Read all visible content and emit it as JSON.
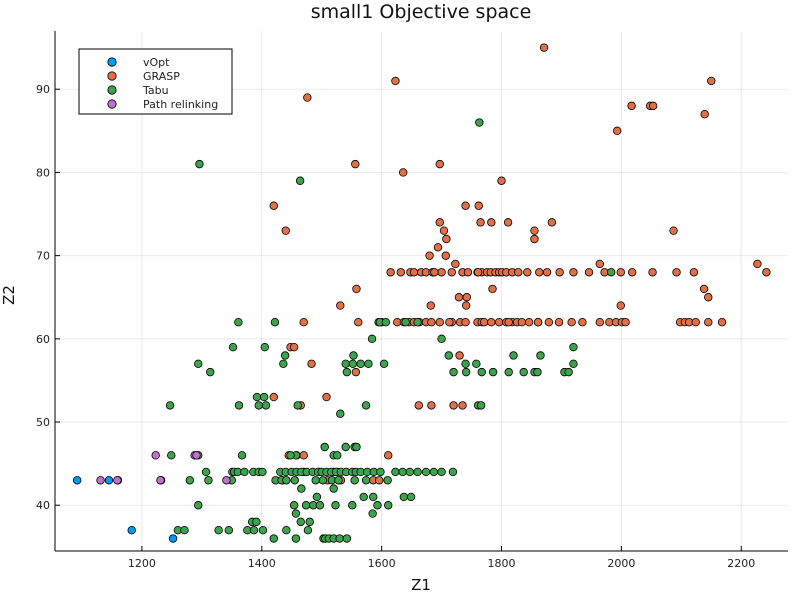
{
  "chart_data": {
    "type": "scatter",
    "title": "small1 Objective space",
    "xlabel": "Z1",
    "ylabel": "Z2",
    "xlim": [
      1055,
      2278
    ],
    "ylim": [
      34.5,
      97
    ],
    "xticks": [
      1200,
      1400,
      1600,
      1800,
      2000,
      2200
    ],
    "yticks": [
      40,
      50,
      60,
      70,
      80,
      90
    ],
    "grid": true,
    "legend_position": "top-left",
    "series": [
      {
        "name": "vOpt",
        "color": "#009AFA",
        "points": [
          [
            1092,
            43
          ],
          [
            1145,
            43
          ],
          [
            1160,
            43
          ],
          [
            1183,
            37
          ],
          [
            1252,
            36
          ]
        ]
      },
      {
        "name": "GRASP",
        "color": "#E36F47",
        "points": [
          [
            1871,
            95
          ],
          [
            1623,
            91
          ],
          [
            2150,
            91
          ],
          [
            1476,
            89
          ],
          [
            2017,
            88
          ],
          [
            2048,
            88
          ],
          [
            2053,
            88
          ],
          [
            1993,
            85
          ],
          [
            2139,
            87
          ],
          [
            1556,
            81
          ],
          [
            1697,
            81
          ],
          [
            1636,
            80
          ],
          [
            1800,
            79
          ],
          [
            1420,
            76
          ],
          [
            1740,
            76
          ],
          [
            1762,
            76
          ],
          [
            1884,
            74
          ],
          [
            1440,
            73
          ],
          [
            1697,
            74
          ],
          [
            1765,
            74
          ],
          [
            1783,
            74
          ],
          [
            1811,
            74
          ],
          [
            1855,
            73
          ],
          [
            2087,
            73
          ],
          [
            1704,
            73
          ],
          [
            1708,
            72
          ],
          [
            1855,
            72
          ],
          [
            1694,
            71
          ],
          [
            1707,
            70
          ],
          [
            1680,
            70
          ],
          [
            1723,
            69
          ],
          [
            1964,
            69
          ],
          [
            2227,
            69
          ],
          [
            1615,
            68
          ],
          [
            1632,
            68
          ],
          [
            1648,
            68
          ],
          [
            1654,
            68
          ],
          [
            1666,
            68
          ],
          [
            1674,
            68
          ],
          [
            1685,
            68
          ],
          [
            1700,
            68
          ],
          [
            1717,
            68
          ],
          [
            1735,
            68
          ],
          [
            1744,
            68
          ],
          [
            1760,
            68
          ],
          [
            1767,
            68
          ],
          [
            1776,
            68
          ],
          [
            1782,
            68
          ],
          [
            1790,
            68
          ],
          [
            1796,
            68
          ],
          [
            1801,
            68
          ],
          [
            1808,
            68
          ],
          [
            1818,
            68
          ],
          [
            1828,
            68
          ],
          [
            1843,
            68
          ],
          [
            1863,
            68
          ],
          [
            1876,
            68
          ],
          [
            1897,
            68
          ],
          [
            1920,
            68
          ],
          [
            1946,
            68
          ],
          [
            1972,
            68
          ],
          [
            1999,
            68
          ],
          [
            2018,
            68
          ],
          [
            2052,
            68
          ],
          [
            2092,
            68
          ],
          [
            2121,
            68
          ],
          [
            2242,
            68
          ],
          [
            1688,
            68
          ],
          [
            1761,
            68
          ],
          [
            2138,
            66
          ],
          [
            1558,
            66
          ],
          [
            1785,
            66
          ],
          [
            2145,
            65
          ],
          [
            1729,
            65
          ],
          [
            1742,
            65
          ],
          [
            1682,
            64
          ],
          [
            1531,
            64
          ],
          [
            1999,
            64
          ],
          [
            1741,
            64
          ],
          [
            1470,
            62
          ],
          [
            1561,
            62
          ],
          [
            1600,
            62
          ],
          [
            1626,
            62
          ],
          [
            1637,
            62
          ],
          [
            1646,
            62
          ],
          [
            1654,
            62
          ],
          [
            1663,
            62
          ],
          [
            1674,
            62
          ],
          [
            1683,
            62
          ],
          [
            1697,
            62
          ],
          [
            1717,
            62
          ],
          [
            1731,
            62
          ],
          [
            1740,
            62
          ],
          [
            1760,
            62
          ],
          [
            1767,
            62
          ],
          [
            1771,
            62
          ],
          [
            1783,
            62
          ],
          [
            1796,
            62
          ],
          [
            1808,
            62
          ],
          [
            1818,
            62
          ],
          [
            1826,
            62
          ],
          [
            1834,
            62
          ],
          [
            1846,
            62
          ],
          [
            1861,
            62
          ],
          [
            1879,
            62
          ],
          [
            1896,
            62
          ],
          [
            1917,
            62
          ],
          [
            1935,
            62
          ],
          [
            1964,
            62
          ],
          [
            1980,
            62
          ],
          [
            1991,
            62
          ],
          [
            2001,
            62
          ],
          [
            2007,
            62
          ],
          [
            2098,
            62
          ],
          [
            2106,
            62
          ],
          [
            2113,
            62
          ],
          [
            2124,
            62
          ],
          [
            2145,
            62
          ],
          [
            2168,
            62
          ],
          [
            1713,
            62
          ],
          [
            1812,
            62
          ],
          [
            1861,
            62
          ],
          [
            1448,
            59
          ],
          [
            1454,
            59
          ],
          [
            1483,
            57
          ],
          [
            1557,
            56
          ],
          [
            1730,
            58
          ],
          [
            1420,
            53
          ],
          [
            1508,
            53
          ],
          [
            1465,
            52
          ],
          [
            1662,
            52
          ],
          [
            1683,
            52
          ],
          [
            1720,
            52
          ],
          [
            1735,
            52
          ],
          [
            1445,
            46
          ],
          [
            1458,
            46
          ],
          [
            1470,
            46
          ],
          [
            1611,
            46
          ],
          [
            1435,
            43
          ],
          [
            1510,
            43
          ],
          [
            1520,
            44
          ],
          [
            1526,
            44
          ],
          [
            1496,
            44
          ],
          [
            1470,
            44
          ],
          [
            1532,
            43
          ],
          [
            1586,
            43
          ],
          [
            1596,
            43
          ]
        ]
      },
      {
        "name": "Tabu",
        "color": "#3DA44D",
        "points": [
          [
            1763,
            86
          ],
          [
            1296,
            81
          ],
          [
            1464,
            79
          ],
          [
            1983,
            68
          ],
          [
            1361,
            62
          ],
          [
            1422,
            62
          ],
          [
            1595,
            62
          ],
          [
            1597,
            62
          ],
          [
            1607,
            62
          ],
          [
            1640,
            62
          ],
          [
            1660,
            62
          ],
          [
            1700,
            60
          ],
          [
            1584,
            60
          ],
          [
            1352,
            59
          ],
          [
            1405,
            59
          ],
          [
            1920,
            59
          ],
          [
            1439,
            58
          ],
          [
            1553,
            58
          ],
          [
            1712,
            58
          ],
          [
            1294,
            57
          ],
          [
            1436,
            57
          ],
          [
            1540,
            57
          ],
          [
            1552,
            57
          ],
          [
            1565,
            57
          ],
          [
            1578,
            57
          ],
          [
            1604,
            57
          ],
          [
            1758,
            57
          ],
          [
            1740,
            57
          ],
          [
            1920,
            57
          ],
          [
            1314,
            56
          ],
          [
            1542,
            56
          ],
          [
            1720,
            56
          ],
          [
            1741,
            56
          ],
          [
            1767,
            56
          ],
          [
            1786,
            56
          ],
          [
            1812,
            56
          ],
          [
            1837,
            56
          ],
          [
            1855,
            56
          ],
          [
            1860,
            56
          ],
          [
            1905,
            56
          ],
          [
            1912,
            56
          ],
          [
            1820,
            58
          ],
          [
            1865,
            58
          ],
          [
            1392,
            53
          ],
          [
            1404,
            53
          ],
          [
            1395,
            52
          ],
          [
            1362,
            52
          ],
          [
            1247,
            52
          ],
          [
            1407,
            52
          ],
          [
            1460,
            52
          ],
          [
            1574,
            52
          ],
          [
            1761,
            52
          ],
          [
            1766,
            52
          ],
          [
            1531,
            51
          ],
          [
            1249,
            46
          ],
          [
            1294,
            46
          ],
          [
            1367,
            46
          ],
          [
            1457,
            46
          ],
          [
            1448,
            46
          ],
          [
            1505,
            47
          ],
          [
            1540,
            47
          ],
          [
            1555,
            47
          ],
          [
            1558,
            47
          ],
          [
            1520,
            46
          ],
          [
            1526,
            46
          ],
          [
            1351,
            44
          ],
          [
            1354,
            44
          ],
          [
            1360,
            44
          ],
          [
            1371,
            44
          ],
          [
            1386,
            44
          ],
          [
            1395,
            44
          ],
          [
            1401,
            44
          ],
          [
            1431,
            44
          ],
          [
            1440,
            44
          ],
          [
            1450,
            44
          ],
          [
            1458,
            44
          ],
          [
            1466,
            44
          ],
          [
            1475,
            44
          ],
          [
            1485,
            44
          ],
          [
            1494,
            44
          ],
          [
            1500,
            44
          ],
          [
            1508,
            44
          ],
          [
            1516,
            44
          ],
          [
            1524,
            44
          ],
          [
            1532,
            44
          ],
          [
            1541,
            44
          ],
          [
            1551,
            44
          ],
          [
            1557,
            44
          ],
          [
            1565,
            44
          ],
          [
            1576,
            44
          ],
          [
            1587,
            44
          ],
          [
            1598,
            44
          ],
          [
            1623,
            44
          ],
          [
            1635,
            44
          ],
          [
            1647,
            44
          ],
          [
            1660,
            44
          ],
          [
            1674,
            44
          ],
          [
            1687,
            44
          ],
          [
            1700,
            44
          ],
          [
            1719,
            44
          ],
          [
            1307,
            44
          ],
          [
            1280,
            43
          ],
          [
            1311,
            43
          ],
          [
            1350,
            43
          ],
          [
            1423,
            43
          ],
          [
            1433,
            43
          ],
          [
            1441,
            43
          ],
          [
            1455,
            43
          ],
          [
            1490,
            43
          ],
          [
            1502,
            43
          ],
          [
            1517,
            43
          ],
          [
            1528,
            43
          ],
          [
            1555,
            43
          ],
          [
            1574,
            43
          ],
          [
            1610,
            43
          ],
          [
            1466,
            42
          ],
          [
            1520,
            42
          ],
          [
            1492,
            41
          ],
          [
            1570,
            41
          ],
          [
            1586,
            41
          ],
          [
            1637,
            41
          ],
          [
            1649,
            41
          ],
          [
            1294,
            40
          ],
          [
            1454,
            40
          ],
          [
            1474,
            40
          ],
          [
            1486,
            40
          ],
          [
            1497,
            40
          ],
          [
            1523,
            40
          ],
          [
            1551,
            40
          ],
          [
            1593,
            40
          ],
          [
            1611,
            40
          ],
          [
            1457,
            39
          ],
          [
            1585,
            39
          ],
          [
            1384,
            38
          ],
          [
            1391,
            38
          ],
          [
            1465,
            38
          ],
          [
            1480,
            38
          ],
          [
            1260,
            37
          ],
          [
            1271,
            37
          ],
          [
            1328,
            37
          ],
          [
            1345,
            37
          ],
          [
            1376,
            37
          ],
          [
            1387,
            37
          ],
          [
            1402,
            37
          ],
          [
            1441,
            37
          ],
          [
            1477,
            37
          ],
          [
            1457,
            36
          ],
          [
            1503,
            36
          ],
          [
            1506,
            36
          ],
          [
            1512,
            36
          ],
          [
            1520,
            36
          ],
          [
            1530,
            36
          ],
          [
            1542,
            36
          ],
          [
            1420,
            36
          ]
        ]
      },
      {
        "name": "Path relinking",
        "color": "#C271D2",
        "points": [
          [
            1131,
            43
          ],
          [
            1159,
            43
          ],
          [
            1223,
            46
          ],
          [
            1288,
            46
          ],
          [
            1291,
            46
          ],
          [
            1232,
            43
          ],
          [
            1231,
            43
          ],
          [
            1341,
            43
          ]
        ]
      }
    ]
  }
}
